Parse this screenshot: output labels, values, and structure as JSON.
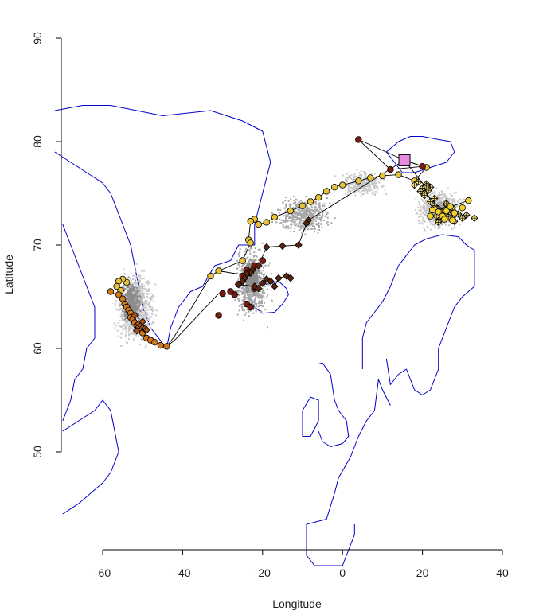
{
  "chart_data": {
    "type": "scatter",
    "title": "",
    "xlabel": "Longitude",
    "ylabel": "Latitude",
    "xlim": [
      -70,
      48
    ],
    "ylim": [
      39,
      90
    ],
    "x_ticks": [
      -60,
      -40,
      -20,
      0,
      20,
      40
    ],
    "y_ticks": [
      50,
      60,
      70,
      80,
      90
    ],
    "x_tick_labels": [
      "-60",
      "-40",
      "-20",
      "0",
      "20",
      "40"
    ],
    "y_tick_labels": [
      "50",
      "60",
      "70",
      "80",
      "90"
    ],
    "grid": false,
    "legend": "none",
    "colors": {
      "coastline": "#0000cc",
      "uncertainty_light": "#c8c8c8",
      "uncertainty_dark": "#8c8c8c",
      "series_yellow": "#e6c23a",
      "series_orange": "#d2781e",
      "series_red_dark": "#7a1a10",
      "series_brown": "#5a2410",
      "colony": "#e58ae0"
    },
    "colony": {
      "x": 15.5,
      "y": 78.2
    },
    "uncertainty_clouds": [
      {
        "cx": -52,
        "cy": 64,
        "rx": 7,
        "ry": 5,
        "n": 900,
        "color": "light"
      },
      {
        "cx": -53,
        "cy": 64.5,
        "rx": 3.5,
        "ry": 3,
        "n": 400,
        "color": "dark"
      },
      {
        "cx": -23,
        "cy": 66.5,
        "rx": 6,
        "ry": 5,
        "n": 700,
        "color": "mid"
      },
      {
        "cx": -23,
        "cy": 67,
        "rx": 3,
        "ry": 2.2,
        "n": 350,
        "color": "dark"
      },
      {
        "cx": -10,
        "cy": 73,
        "rx": 10,
        "ry": 2.5,
        "n": 500,
        "color": "mid"
      },
      {
        "cx": 24,
        "cy": 73.5,
        "rx": 8,
        "ry": 2.8,
        "n": 700,
        "color": "light"
      },
      {
        "cx": 25,
        "cy": 73.3,
        "rx": 4,
        "ry": 1.6,
        "n": 300,
        "color": "mid"
      },
      {
        "cx": 5,
        "cy": 76,
        "rx": 8,
        "ry": 1.8,
        "n": 300,
        "color": "light"
      }
    ],
    "series": [
      {
        "marker": "circle",
        "color": "#e6c23a",
        "x": [
          21,
          18,
          14,
          10,
          7,
          4,
          0,
          -2,
          -4,
          -6,
          -8,
          -10,
          -13,
          -17,
          -19,
          -21,
          -22,
          -23,
          -23.5,
          -23,
          -25,
          -31,
          -33
        ],
        "y": [
          77.5,
          76.2,
          76.8,
          76.7,
          76.5,
          76.2,
          75.8,
          75.6,
          75.2,
          74.6,
          74.2,
          73.8,
          73.3,
          72.7,
          72.2,
          72.0,
          72.5,
          72.3,
          70.5,
          70.2,
          68.5,
          67.5,
          67.0
        ]
      },
      {
        "marker": "circle",
        "color": "#e6c23a",
        "x": [
          -54,
          -55,
          -56,
          -56.5,
          -55.5
        ],
        "y": [
          66.4,
          66.7,
          66.5,
          66.0,
          65.6
        ]
      },
      {
        "marker": "circle",
        "color": "#d2781e",
        "x": [
          -58,
          -56,
          -55,
          -54.5,
          -54,
          -53.5,
          -53,
          -53,
          -52.5,
          -52,
          -51.5,
          -51,
          -50.5,
          -50,
          -49,
          -48,
          -47,
          -45.5,
          -44
        ],
        "y": [
          65.5,
          65.2,
          64.8,
          64.3,
          64.0,
          63.7,
          63.4,
          63.0,
          62.8,
          62.5,
          62.2,
          62.0,
          61.8,
          61.5,
          61.0,
          60.8,
          60.6,
          60.3,
          60.2
        ]
      },
      {
        "marker": "circle",
        "color": "#7a1a10",
        "x": [
          4,
          12,
          20,
          -20,
          -22,
          -24,
          -25,
          -26,
          -27,
          -24,
          -23,
          -22,
          -28,
          -30,
          -31
        ],
        "y": [
          80.2,
          77.3,
          77.6,
          68.5,
          68.0,
          67.6,
          67.0,
          66.2,
          65.2,
          64.3,
          64.0,
          65.8,
          65.5,
          65.3,
          63.2
        ]
      },
      {
        "marker": "diamond",
        "color": "#5a2410",
        "x": [
          -8.5,
          -9,
          -11,
          -15,
          -19,
          -21,
          -22.5,
          -23,
          -24,
          -24.5,
          -25,
          -26,
          -22,
          -21,
          -20,
          -19,
          -18,
          -17,
          -16,
          -14,
          -13
        ],
        "y": [
          72.4,
          72.1,
          70.0,
          69.9,
          69.8,
          68.0,
          67.6,
          67.3,
          67.2,
          66.8,
          66.5,
          66.2,
          66.0,
          65.8,
          66.3,
          66.7,
          66.5,
          66.0,
          66.8,
          67.0,
          66.8
        ]
      },
      {
        "marker": "diamond",
        "color": "#a05018",
        "x": [
          -52,
          -51,
          -50.5,
          -50,
          -49.5,
          -49,
          -50,
          -51.5
        ],
        "y": [
          63.2,
          62.4,
          62.2,
          62.0,
          61.9,
          61.8,
          62.6,
          61.7
        ]
      },
      {
        "marker": "cross-diamond",
        "color": "#f2e07a",
        "x": [
          18,
          19,
          20,
          21,
          22,
          19.5,
          20.5,
          21.5,
          23,
          24,
          25,
          26,
          27,
          28,
          29,
          30,
          23.5,
          24.5,
          25.5,
          26.5,
          27.5,
          22,
          23,
          26,
          28,
          31,
          33,
          20.5,
          21,
          24
        ],
        "y": [
          75.8,
          76.1,
          75.5,
          75.9,
          75.6,
          75.2,
          75.0,
          75.3,
          73.8,
          73.5,
          73.2,
          73.9,
          73.4,
          72.9,
          73.0,
          72.6,
          72.8,
          72.5,
          73.0,
          72.7,
          73.6,
          74.2,
          74.5,
          74.0,
          72.3,
          72.9,
          72.6,
          74.8,
          75.7,
          72.2
        ]
      },
      {
        "marker": "circle",
        "color": "#f0d02a",
        "x": [
          23,
          24,
          25,
          26,
          27,
          28,
          30,
          31.5,
          22,
          22.5,
          25.5,
          27.5
        ],
        "y": [
          73.5,
          73.2,
          72.8,
          73.3,
          73.7,
          73.1,
          73.6,
          74.3,
          72.8,
          73.4,
          72.5,
          72.4
        ]
      }
    ],
    "tracks": [
      {
        "x": [
          15.5,
          21,
          18,
          14,
          10,
          7,
          4,
          0,
          -2,
          -4,
          -6,
          -8,
          -10,
          -13,
          -17,
          -19,
          -21,
          -22,
          -23,
          -23.5,
          -23,
          -25,
          -31,
          -33
        ],
        "y": [
          78.2,
          77.5,
          76.2,
          76.8,
          76.7,
          76.5,
          76.2,
          75.8,
          75.6,
          75.2,
          74.6,
          74.2,
          73.8,
          73.3,
          72.7,
          72.2,
          72.0,
          72.5,
          72.3,
          70.5,
          70.2,
          68.5,
          67.5,
          67.0
        ]
      },
      {
        "x": [
          15.5,
          4,
          12,
          20,
          15.5
        ],
        "y": [
          78.2,
          80.2,
          77.3,
          77.6,
          78.2
        ]
      },
      {
        "x": [
          15.5,
          -8.5,
          -9,
          -11,
          -15,
          -19,
          -21,
          -22.5,
          -23,
          -24,
          -25,
          -26,
          -22,
          -21,
          -20,
          -19,
          -18,
          -17,
          -16,
          -14,
          -13
        ],
        "y": [
          78.2,
          72.4,
          72.1,
          70.0,
          69.9,
          69.8,
          68.0,
          67.6,
          67.3,
          67.2,
          66.5,
          66.2,
          66.0,
          65.8,
          66.3,
          66.7,
          66.5,
          66.0,
          66.8,
          67.0,
          66.8
        ]
      },
      {
        "x": [
          -23,
          -31,
          -33,
          -42,
          -44,
          -45.5,
          -47,
          -49,
          -51,
          -53,
          -55,
          -58
        ],
        "y": [
          67.0,
          67.5,
          67.0,
          61.2,
          60.2,
          60.3,
          60.6,
          61.0,
          62.0,
          63.4,
          64.8,
          65.5
        ]
      },
      {
        "x": [
          -26,
          -31,
          -42,
          -44
        ],
        "y": [
          65.2,
          65.3,
          60.8,
          60.2
        ]
      },
      {
        "x": [
          15.5,
          20,
          23,
          27,
          31.5
        ],
        "y": [
          78.2,
          76.0,
          73.5,
          73.7,
          74.3
        ]
      }
    ],
    "coastlines": [
      {
        "name": "greenland",
        "x": [
          -72,
          -65,
          -58,
          -45,
          -33,
          -25,
          -20,
          -18,
          -20,
          -22,
          -22,
          -26,
          -28,
          -32,
          -35,
          -38,
          -41,
          -43,
          -44,
          -46,
          -48,
          -50,
          -51,
          -52,
          -53,
          -54,
          -56,
          -58,
          -60,
          -62,
          -64,
          -66,
          -68,
          -72
        ],
        "y": [
          83,
          83.5,
          83.5,
          82.5,
          83,
          82,
          81,
          78,
          75,
          72,
          70,
          70,
          68.5,
          68,
          66,
          65.5,
          64,
          62,
          60,
          61,
          62,
          64,
          66,
          68,
          70,
          71,
          73,
          75,
          76,
          76.5,
          77,
          77.5,
          78,
          79
        ]
      },
      {
        "name": "baffin",
        "x": [
          -70,
          -68,
          -66,
          -64,
          -62,
          -62,
          -64,
          -65,
          -67,
          -68,
          -70
        ],
        "y": [
          72,
          70,
          68,
          66,
          64,
          61,
          60,
          58,
          57,
          55,
          53
        ]
      },
      {
        "name": "labrador",
        "x": [
          -70,
          -66,
          -62,
          -60,
          -58,
          -57,
          -56,
          -57,
          -58,
          -60,
          -63,
          -66,
          -70
        ],
        "y": [
          52,
          53,
          54,
          55,
          54,
          52,
          50,
          49,
          48,
          47,
          46,
          45,
          44
        ]
      },
      {
        "name": "iceland",
        "x": [
          -24,
          -22,
          -19,
          -16,
          -14,
          -13.5,
          -15,
          -17,
          -20,
          -22,
          -24
        ],
        "y": [
          65.5,
          66.4,
          66.2,
          66.5,
          65.8,
          65.2,
          64.3,
          63.5,
          63.4,
          64.0,
          65.5
        ]
      },
      {
        "name": "svalbard",
        "x": [
          11,
          14,
          17,
          20,
          24,
          27,
          28,
          26,
          22,
          18,
          15,
          13,
          11
        ],
        "y": [
          79,
          80,
          80.5,
          80.5,
          80.2,
          80,
          79,
          78,
          77.5,
          77,
          77,
          78,
          79
        ]
      },
      {
        "name": "norway",
        "x": [
          5,
          5,
          6,
          8,
          10,
          12,
          14,
          16,
          18,
          21,
          25,
          29,
          31,
          33,
          33,
          30,
          28,
          26,
          24,
          24,
          22,
          20,
          18,
          17,
          16,
          14,
          12,
          11
        ],
        "y": [
          58,
          61,
          62.5,
          63.5,
          64.5,
          66,
          68,
          69,
          70,
          70.6,
          71,
          70.8,
          70,
          69.5,
          66,
          65,
          64,
          62,
          60,
          58,
          56,
          55.5,
          56,
          57,
          58,
          57.5,
          56.5,
          59
        ]
      },
      {
        "name": "uk",
        "x": [
          -6,
          -5,
          -3,
          -2,
          -1,
          1,
          1.5,
          0,
          -3,
          -5,
          -6
        ],
        "y": [
          58.5,
          58.6,
          57.5,
          55,
          54,
          53,
          51.5,
          50.8,
          50.5,
          51,
          52
        ]
      },
      {
        "name": "ireland",
        "x": [
          -10,
          -8,
          -6,
          -6,
          -8,
          -10,
          -10
        ],
        "y": [
          54,
          55.3,
          55,
          53,
          51.5,
          51.5,
          54
        ]
      },
      {
        "name": "europe_west",
        "x": [
          -9,
          -4,
          -2,
          -1,
          2,
          4,
          6,
          8,
          9,
          10,
          12
        ],
        "y": [
          43,
          43.5,
          46,
          47.5,
          49.5,
          51.5,
          53,
          54,
          57,
          56,
          54.5
        ]
      },
      {
        "name": "iberia",
        "x": [
          -9,
          -9,
          -7,
          -6,
          -2,
          0,
          3,
          3
        ],
        "y": [
          43,
          40,
          39,
          39,
          39,
          39,
          42,
          43
        ]
      }
    ]
  }
}
